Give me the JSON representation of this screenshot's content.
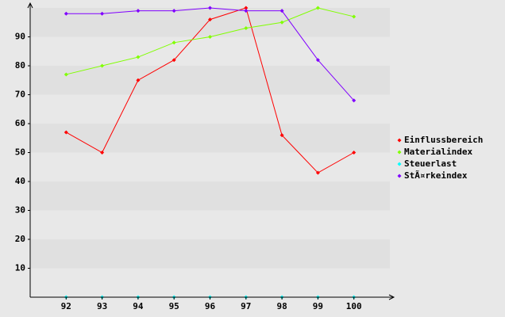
{
  "chart_data": {
    "type": "line",
    "categories": [
      "92",
      "93",
      "94",
      "95",
      "96",
      "97",
      "98",
      "99",
      "100"
    ],
    "series": [
      {
        "name": "Einflussbereich",
        "color": "#ff0000",
        "values": [
          57,
          50,
          75,
          82,
          96,
          100,
          56,
          43,
          50
        ]
      },
      {
        "name": "Materialindex",
        "color": "#80ff00",
        "values": [
          77,
          80,
          83,
          88,
          90,
          93,
          95,
          100,
          97
        ]
      },
      {
        "name": "Steuerlast",
        "color": "#00ffff",
        "values": [
          0,
          0,
          0,
          0,
          0,
          0,
          0,
          0,
          0
        ]
      },
      {
        "name": "StÃ¤rkeindex",
        "color": "#8000ff",
        "values": [
          98,
          98,
          99,
          99,
          100,
          99,
          99,
          82,
          68
        ]
      }
    ],
    "ylim": [
      0,
      100
    ],
    "yticks": [
      10,
      20,
      30,
      40,
      50,
      60,
      70,
      80,
      90
    ],
    "grid": true,
    "legend": "right"
  }
}
